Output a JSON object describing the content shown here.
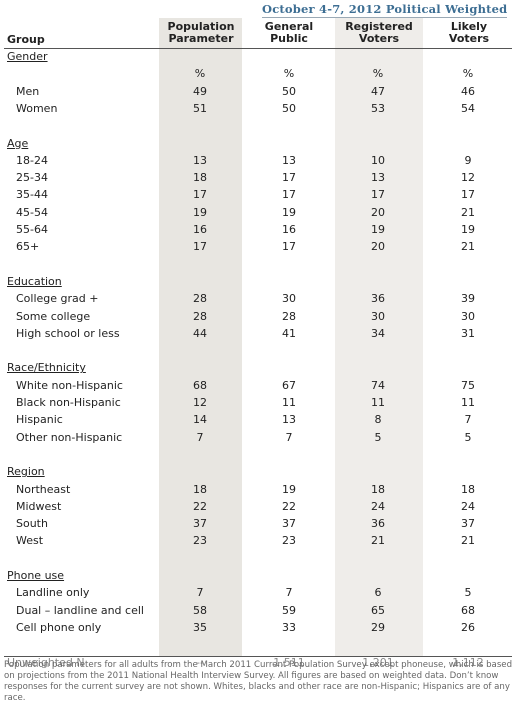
{
  "title": "October 4-7, 2012 Political Weighted",
  "columns": {
    "group": "Group",
    "c1": [
      "Population",
      "Parameter"
    ],
    "c2": [
      "General",
      "Public"
    ],
    "c3": [
      "Registered",
      "Voters"
    ],
    "c4": [
      "Likely",
      "Voters"
    ]
  },
  "rows": [
    {
      "type": "cat",
      "label": "Gender"
    },
    {
      "type": "pct",
      "values": [
        "%",
        "%",
        "%",
        "%"
      ]
    },
    {
      "type": "item",
      "label": "Men",
      "values": [
        "49",
        "50",
        "47",
        "46"
      ]
    },
    {
      "type": "item",
      "label": "Women",
      "values": [
        "51",
        "50",
        "53",
        "54"
      ]
    },
    {
      "type": "gap"
    },
    {
      "type": "cat",
      "label": "Age"
    },
    {
      "type": "item",
      "label": "18-24",
      "values": [
        "13",
        "13",
        "10",
        "9"
      ]
    },
    {
      "type": "item",
      "label": "25-34",
      "values": [
        "18",
        "17",
        "13",
        "12"
      ]
    },
    {
      "type": "item",
      "label": "35-44",
      "values": [
        "17",
        "17",
        "17",
        "17"
      ]
    },
    {
      "type": "item",
      "label": "45-54",
      "values": [
        "19",
        "19",
        "20",
        "21"
      ]
    },
    {
      "type": "item",
      "label": "55-64",
      "values": [
        "16",
        "16",
        "19",
        "19"
      ]
    },
    {
      "type": "item",
      "label": "65+",
      "values": [
        "17",
        "17",
        "20",
        "21"
      ]
    },
    {
      "type": "gap"
    },
    {
      "type": "cat",
      "label": "Education"
    },
    {
      "type": "item",
      "label": "College grad +",
      "values": [
        "28",
        "30",
        "36",
        "39"
      ]
    },
    {
      "type": "item",
      "label": "Some college",
      "values": [
        "28",
        "28",
        "30",
        "30"
      ]
    },
    {
      "type": "item",
      "label": "High school or less",
      "values": [
        "44",
        "41",
        "34",
        "31"
      ]
    },
    {
      "type": "gap"
    },
    {
      "type": "cat",
      "label": "Race/Ethnicity"
    },
    {
      "type": "item",
      "label": "White non-Hispanic",
      "values": [
        "68",
        "67",
        "74",
        "75"
      ]
    },
    {
      "type": "item",
      "label": "Black non-Hispanic",
      "values": [
        "12",
        "11",
        "11",
        "11"
      ]
    },
    {
      "type": "item",
      "label": "Hispanic",
      "values": [
        "14",
        "13",
        "8",
        "7"
      ]
    },
    {
      "type": "item",
      "label": "Other non-Hispanic",
      "values": [
        "7",
        "7",
        "5",
        "5"
      ]
    },
    {
      "type": "gap"
    },
    {
      "type": "cat",
      "label": "Region"
    },
    {
      "type": "item",
      "label": "Northeast",
      "values": [
        "18",
        "19",
        "18",
        "18"
      ]
    },
    {
      "type": "item",
      "label": "Midwest",
      "values": [
        "22",
        "22",
        "24",
        "24"
      ]
    },
    {
      "type": "item",
      "label": "South",
      "values": [
        "37",
        "37",
        "36",
        "37"
      ]
    },
    {
      "type": "item",
      "label": "West",
      "values": [
        "23",
        "23",
        "21",
        "21"
      ]
    },
    {
      "type": "gap"
    },
    {
      "type": "cat",
      "label": "Phone use"
    },
    {
      "type": "item",
      "label": "Landline only",
      "values": [
        "7",
        "7",
        "6",
        "5"
      ]
    },
    {
      "type": "item",
      "label": "Dual – landline and cell",
      "values": [
        "58",
        "59",
        "65",
        "68"
      ]
    },
    {
      "type": "item",
      "label": "Cell phone only",
      "values": [
        "35",
        "33",
        "29",
        "26"
      ]
    },
    {
      "type": "gap"
    },
    {
      "type": "unw",
      "label": "Unweighted N",
      "values": [
        "--",
        "1,511",
        "1,201",
        "1,112"
      ]
    }
  ],
  "footnote": "Population parameters for all adults from the March 2011 Current Population Survey except phoneuse, which is based on projections from the 2011 National Health Interview Survey. All figures are based on weighted data. Don’t know responses for the current survey are not shown. Whites, blacks and other race are non-Hispanic; Hispanics are of any race."
}
